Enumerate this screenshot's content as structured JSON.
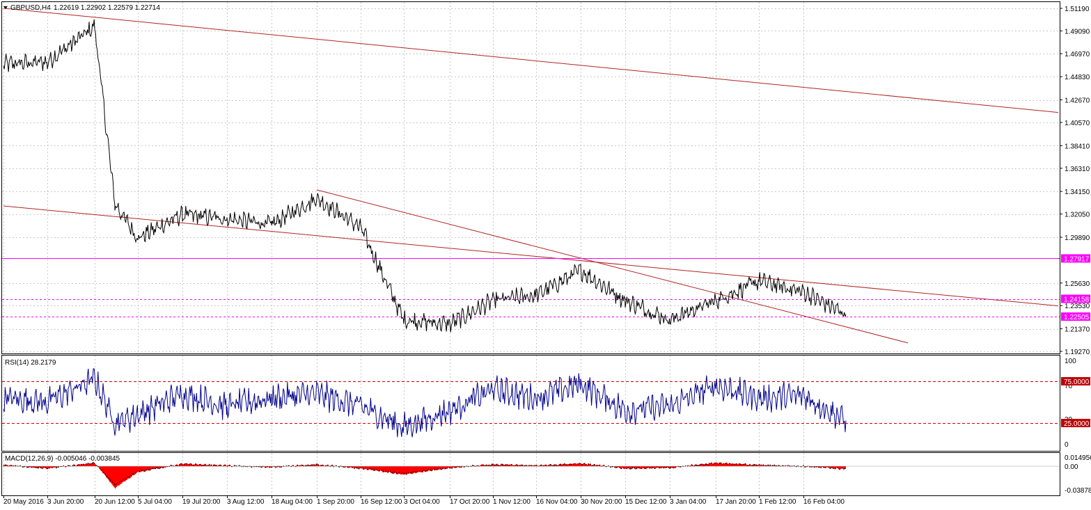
{
  "header": {
    "symbol": "GBPUSD,H4",
    "ohlc": "1.22619 1.22902 1.22579 1.22714"
  },
  "colors": {
    "price": "#000000",
    "trendline": "#b22222",
    "magenta": "#ff00ff",
    "rsi_line": "#00008b",
    "level_dash": "#cc0000",
    "macd_hist": "#ff0000",
    "grid": "#c8c8c8",
    "tag_red": "#c00000",
    "tag_magenta": "#ff00ff"
  },
  "price_panel": {
    "axis_ticks": [
      "1.51190",
      "1.49090",
      "1.46970",
      "1.44830",
      "1.42670",
      "1.40570",
      "1.38410",
      "1.36310",
      "1.34150",
      "1.32050",
      "1.29890",
      "1.25630",
      "1.23530",
      "1.21370",
      "1.19270"
    ],
    "price_tags": [
      {
        "label": "1.27917",
        "value": 1.27917,
        "style": "solid"
      },
      {
        "label": "1.24158",
        "value": 1.24158,
        "style": "dashed"
      },
      {
        "label": "1.22505",
        "value": 1.22505,
        "style": "dashed"
      }
    ]
  },
  "rsi_panel": {
    "label": "RSI(14) 28.2179",
    "axis_ticks": [
      "100",
      "70",
      "30",
      "0"
    ],
    "levels": [
      {
        "label": "75.0000",
        "value": 75
      },
      {
        "label": "25.0000",
        "value": 25
      }
    ]
  },
  "macd_panel": {
    "label": "MACD(12,26,9) -0.005046 -0.003845",
    "axis_ticks": [
      "0.014956",
      "0.00",
      "-0.038781"
    ]
  },
  "time_axis": {
    "labels": [
      "20 May 2016",
      "3 Jun 20:00",
      "20 Jun 12:00",
      "5 Jul 04:00",
      "19 Jul 20:00",
      "3 Aug 12:00",
      "18 Aug 04:00",
      "1 Sep 20:00",
      "16 Sep 12:00",
      "3 Oct 04:00",
      "17 Oct 20:00",
      "1 Nov 12:00",
      "16 Nov 04:00",
      "30 Nov 20:00",
      "15 Dec 12:00",
      "3 Jan 04:00",
      "17 Jan 20:00",
      "1 Feb 12:00",
      "16 Feb 04:00"
    ]
  },
  "chart_data": {
    "type": "line",
    "title": "GBPUSD,H4",
    "ylim": [
      1.1927,
      1.5119
    ],
    "price_path": {
      "x": [
        "20 May 2016",
        "3 Jun 20:00",
        "20 Jun 12:00",
        "24 Jun",
        "5 Jul 04:00",
        "19 Jul 20:00",
        "3 Aug 12:00",
        "18 Aug 04:00",
        "1 Sep 20:00",
        "16 Sep 12:00",
        "3 Oct 04:00",
        "17 Oct 20:00",
        "1 Nov 12:00",
        "16 Nov 04:00",
        "30 Nov 20:00",
        "15 Dec 12:00",
        "3 Jan 04:00",
        "17 Jan 20:00",
        "1 Feb 12:00",
        "16 Feb 04:00",
        "21 Feb"
      ],
      "y": [
        1.46,
        1.462,
        1.495,
        1.33,
        1.298,
        1.32,
        1.316,
        1.311,
        1.335,
        1.308,
        1.222,
        1.218,
        1.24,
        1.245,
        1.268,
        1.24,
        1.222,
        1.24,
        1.258,
        1.248,
        1.227
      ]
    },
    "rsi": {
      "name": "RSI(14)",
      "ylim": [
        0,
        100
      ],
      "levels": [
        75,
        25
      ],
      "last": 28.2179,
      "x": [
        "20 May 2016",
        "3 Jun 20:00",
        "20 Jun 12:00",
        "24 Jun",
        "5 Jul 04:00",
        "19 Jul 20:00",
        "3 Aug 12:00",
        "18 Aug 04:00",
        "1 Sep 20:00",
        "16 Sep 12:00",
        "3 Oct 04:00",
        "17 Oct 20:00",
        "1 Nov 12:00",
        "16 Nov 04:00",
        "30 Nov 20:00",
        "15 Dec 12:00",
        "3 Jan 04:00",
        "17 Jan 20:00",
        "1 Feb 12:00",
        "16 Feb 04:00",
        "21 Feb"
      ],
      "y": [
        55,
        50,
        78,
        25,
        35,
        60,
        45,
        55,
        60,
        45,
        20,
        40,
        65,
        55,
        72,
        40,
        45,
        70,
        55,
        58,
        28
      ]
    },
    "macd": {
      "name": "MACD(12,26,9)",
      "main": -0.005046,
      "signal": -0.003845,
      "ylim": [
        -0.038781,
        0.014956
      ],
      "x": [
        "20 May 2016",
        "3 Jun 20:00",
        "20 Jun 12:00",
        "24 Jun",
        "5 Jul 04:00",
        "19 Jul 20:00",
        "3 Aug 12:00",
        "18 Aug 04:00",
        "1 Sep 20:00",
        "16 Sep 12:00",
        "3 Oct 04:00",
        "17 Oct 20:00",
        "1 Nov 12:00",
        "16 Nov 04:00",
        "30 Nov 20:00",
        "15 Dec 12:00",
        "3 Jan 04:00",
        "17 Jan 20:00",
        "1 Feb 12:00",
        "16 Feb 04:00",
        "21 Feb"
      ],
      "y": [
        0.002,
        -0.004,
        0.006,
        -0.036,
        -0.01,
        0.004,
        0.001,
        -0.002,
        0.003,
        -0.004,
        -0.014,
        -0.003,
        0.003,
        0.001,
        0.005,
        -0.004,
        -0.003,
        0.006,
        0.002,
        0.0,
        -0.005
      ]
    },
    "trendlines": [
      {
        "from": {
          "x": "20 May 2016",
          "y": 1.512
        },
        "to": {
          "x": "21 Feb",
          "y": 1.415
        }
      },
      {
        "from": {
          "x": "20 May 2016",
          "y": 1.328
        },
        "to": {
          "x": "21 Feb",
          "y": 1.235
        }
      },
      {
        "from": {
          "x": "1 Sep 20:00",
          "y": 1.343
        },
        "to": {
          "x": "16 Feb 04:00",
          "y": 1.2135
        }
      }
    ],
    "horizontal_levels": [
      1.27917,
      1.24158,
      1.22505
    ]
  }
}
